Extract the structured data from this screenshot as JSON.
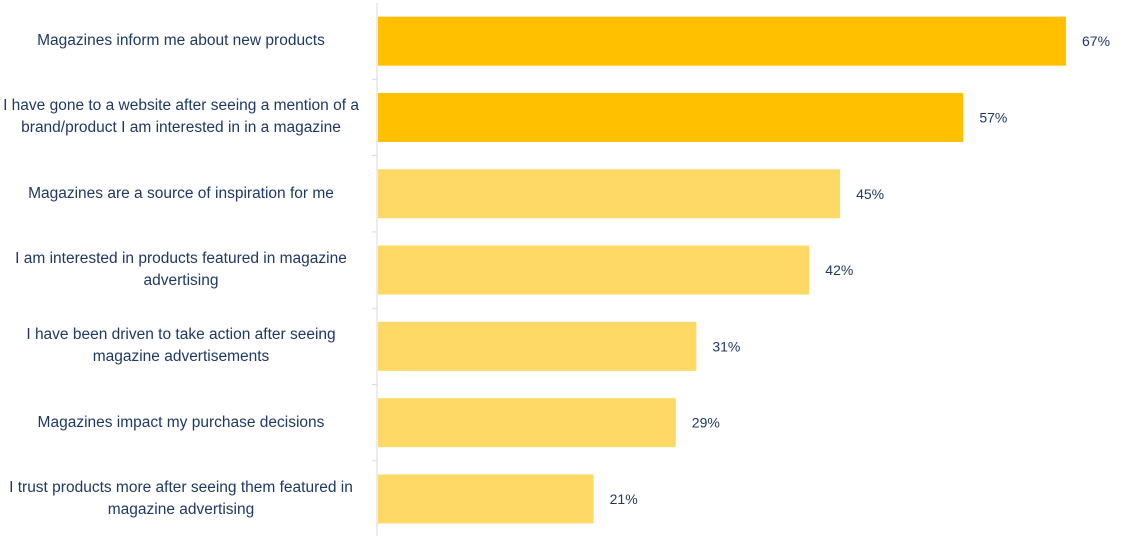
{
  "chart_data": {
    "type": "bar",
    "orientation": "horizontal",
    "categories": [
      "Magazines inform me about new products",
      "I have gone to a website after seeing a mention of a brand/product I am interested in in a magazine",
      "Magazines are a source of inspiration for me",
      "I am interested in products featured in magazine advertising",
      "I have been driven to take action after seeing magazine advertisements",
      "Magazines impact my purchase decisions",
      "I trust products more after seeing them featured in magazine advertising"
    ],
    "values": [
      67,
      57,
      45,
      42,
      31,
      29,
      21
    ],
    "value_labels": [
      "67%",
      "57%",
      "45%",
      "42%",
      "31%",
      "29%",
      "21%"
    ],
    "highlighted": [
      true,
      true,
      false,
      false,
      false,
      false,
      false
    ],
    "colors": {
      "highlight": "#FFC000",
      "normal": "#FFD966",
      "label_text": "#1F3864",
      "axis": "#D9D9D9"
    },
    "xlim": [
      0,
      67
    ],
    "grid": false,
    "legend": "none"
  }
}
